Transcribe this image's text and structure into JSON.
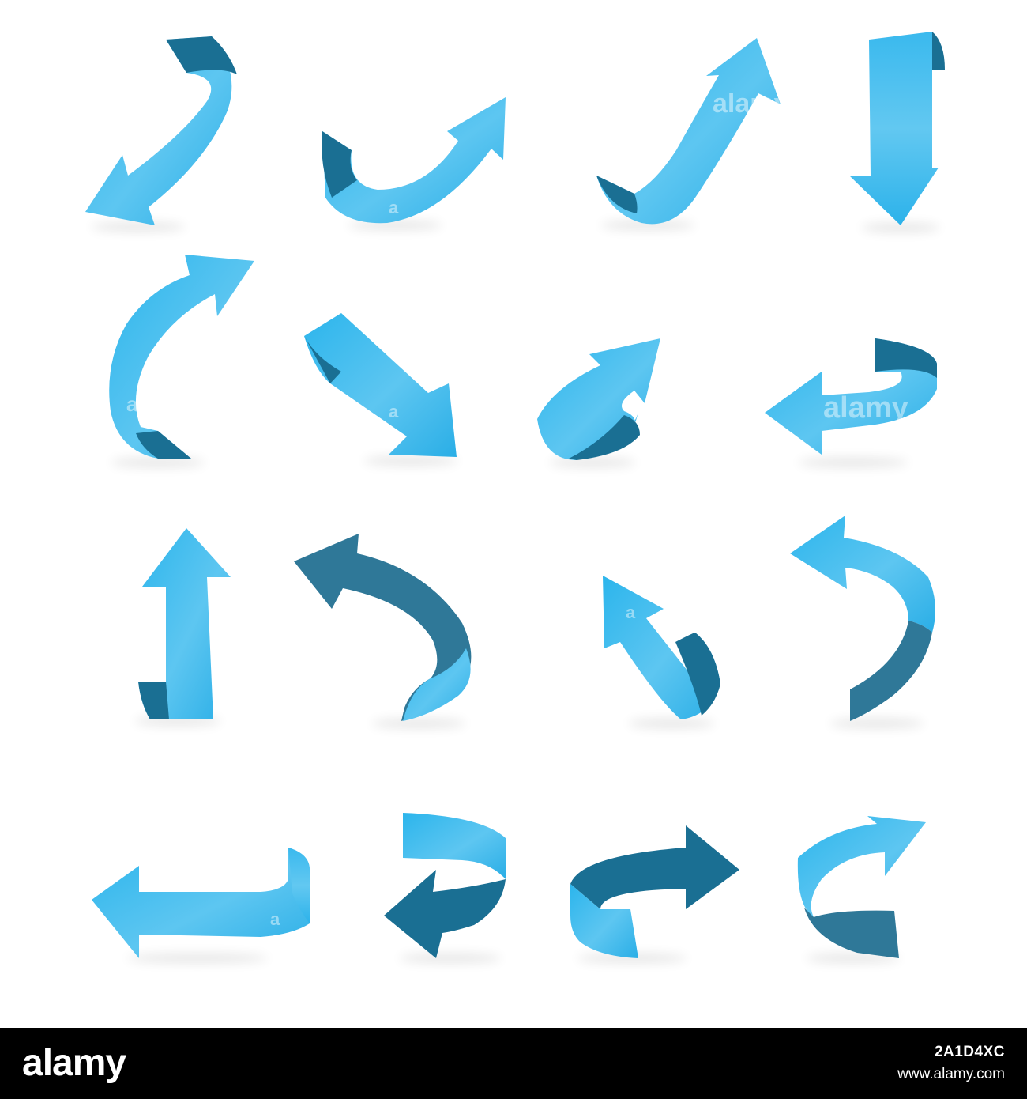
{
  "image": {
    "subject": "ribbon-arrows-set",
    "arrow_count": 16,
    "colors": {
      "light": "#2cb5ec",
      "mid": "#58c3ef",
      "dark": "#1a6f93",
      "darker": "#2f7898",
      "background": "#ffffff"
    }
  },
  "watermark": {
    "text": "alamy",
    "initial": "a"
  },
  "footer": {
    "logo": "alamy",
    "image_id": "2A1D4XC",
    "site": "www.alamy.com",
    "background": "#000000"
  }
}
